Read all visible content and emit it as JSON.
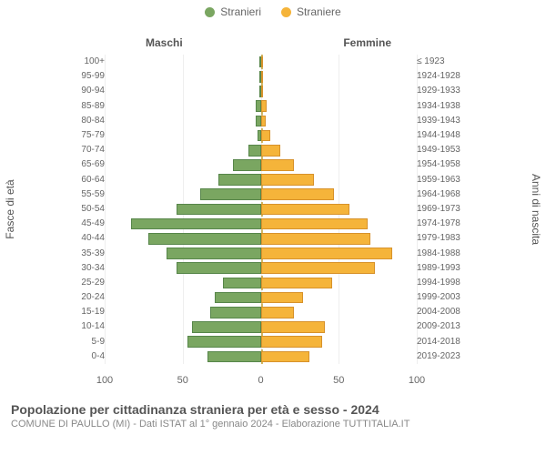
{
  "legend": {
    "male_label": "Stranieri",
    "female_label": "Straniere"
  },
  "columns": {
    "left": "Maschi",
    "right": "Femmine"
  },
  "axis": {
    "left_title": "Fasce di età",
    "right_title": "Anni di nascita",
    "xlim": 100,
    "xticks": [
      100,
      50,
      0,
      50,
      100
    ]
  },
  "colors": {
    "male_fill": "#7aa661",
    "male_border": "#57864a",
    "female_fill": "#f5b43a",
    "female_border": "#d7922b",
    "background": "#ffffff",
    "grid": "#eeeeee",
    "centerline": "#b58900"
  },
  "pyramid": {
    "type": "population-pyramid",
    "rows": [
      {
        "age": "100+",
        "birth": "≤ 1923",
        "m": 0,
        "f": 0
      },
      {
        "age": "95-99",
        "birth": "1924-1928",
        "m": 0,
        "f": 0
      },
      {
        "age": "90-94",
        "birth": "1929-1933",
        "m": 0,
        "f": 0
      },
      {
        "age": "85-89",
        "birth": "1934-1938",
        "m": 3,
        "f": 4
      },
      {
        "age": "80-84",
        "birth": "1939-1943",
        "m": 3,
        "f": 3
      },
      {
        "age": "75-79",
        "birth": "1944-1948",
        "m": 2,
        "f": 6
      },
      {
        "age": "70-74",
        "birth": "1949-1953",
        "m": 8,
        "f": 13
      },
      {
        "age": "65-69",
        "birth": "1954-1958",
        "m": 18,
        "f": 22
      },
      {
        "age": "60-64",
        "birth": "1959-1963",
        "m": 28,
        "f": 35
      },
      {
        "age": "55-59",
        "birth": "1964-1968",
        "m": 40,
        "f": 48
      },
      {
        "age": "50-54",
        "birth": "1969-1973",
        "m": 55,
        "f": 58
      },
      {
        "age": "45-49",
        "birth": "1974-1978",
        "m": 85,
        "f": 70
      },
      {
        "age": "40-44",
        "birth": "1979-1983",
        "m": 74,
        "f": 72
      },
      {
        "age": "35-39",
        "birth": "1984-1988",
        "m": 62,
        "f": 86
      },
      {
        "age": "30-34",
        "birth": "1989-1993",
        "m": 55,
        "f": 75
      },
      {
        "age": "25-29",
        "birth": "1994-1998",
        "m": 25,
        "f": 47
      },
      {
        "age": "20-24",
        "birth": "1999-2003",
        "m": 30,
        "f": 28
      },
      {
        "age": "15-19",
        "birth": "2004-2008",
        "m": 33,
        "f": 22
      },
      {
        "age": "10-14",
        "birth": "2009-2013",
        "m": 45,
        "f": 42
      },
      {
        "age": "5-9",
        "birth": "2014-2018",
        "m": 48,
        "f": 40
      },
      {
        "age": "0-4",
        "birth": "2019-2023",
        "m": 35,
        "f": 32
      }
    ]
  },
  "footer": {
    "title": "Popolazione per cittadinanza straniera per età e sesso - 2024",
    "subtitle": "COMUNE DI PAULLO (MI) - Dati ISTAT al 1° gennaio 2024 - Elaborazione TUTTITALIA.IT"
  }
}
